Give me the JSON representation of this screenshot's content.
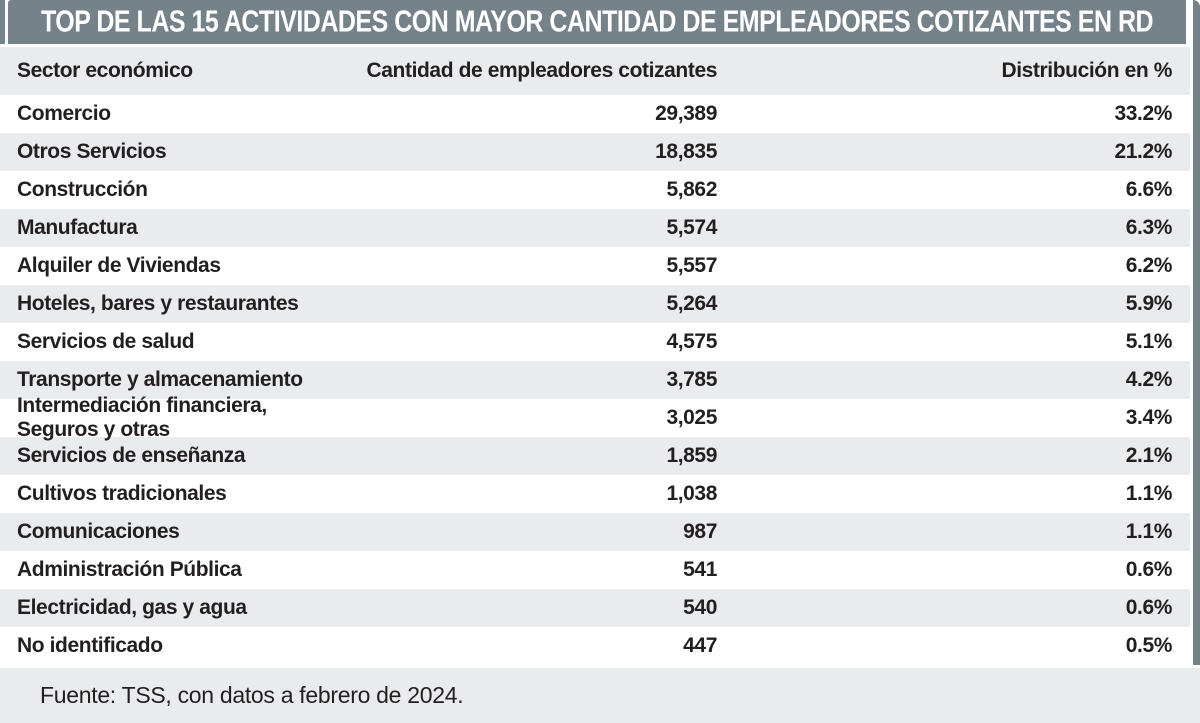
{
  "title": "TOP DE LAS 15 ACTIVIDADES CON MAYOR CANTIDAD DE EMPLEADORES COTIZANTES EN RD",
  "table": {
    "columns": [
      "Sector económico",
      "Cantidad de empleadores cotizantes",
      "Distribución en %"
    ],
    "rows": [
      {
        "sector": "Comercio",
        "cantidad": "29,389",
        "distribucion": "33.2%"
      },
      {
        "sector": "Otros Servicios",
        "cantidad": "18,835",
        "distribucion": "21.2%"
      },
      {
        "sector": "Construcción",
        "cantidad": "5,862",
        "distribucion": "6.6%"
      },
      {
        "sector": "Manufactura",
        "cantidad": "5,574",
        "distribucion": "6.3%"
      },
      {
        "sector": "Alquiler de Viviendas",
        "cantidad": "5,557",
        "distribucion": "6.2%"
      },
      {
        "sector": "Hoteles, bares y restaurantes",
        "cantidad": "5,264",
        "distribucion": "5.9%"
      },
      {
        "sector": "Servicios de salud",
        "cantidad": "4,575",
        "distribucion": "5.1%"
      },
      {
        "sector": "Transporte y almacenamiento",
        "cantidad": "3,785",
        "distribucion": "4.2%"
      },
      {
        "sector": "Intermediación financiera, Seguros y otras",
        "cantidad": "3,025",
        "distribucion": "3.4%"
      },
      {
        "sector": "Servicios de enseñanza",
        "cantidad": "1,859",
        "distribucion": "2.1%"
      },
      {
        "sector": "Cultivos tradicionales",
        "cantidad": "1,038",
        "distribucion": "1.1%"
      },
      {
        "sector": "Comunicaciones",
        "cantidad": "987",
        "distribucion": "1.1%"
      },
      {
        "sector": "Administración Pública",
        "cantidad": "541",
        "distribucion": "0.6%"
      },
      {
        "sector": "Electricidad, gas y agua",
        "cantidad": "540",
        "distribucion": "0.6%"
      },
      {
        "sector": "No identificado",
        "cantidad": "447",
        "distribucion": "0.5%"
      }
    ]
  },
  "footer": {
    "source": "Fuente: TSS, con datos a febrero de 2024."
  },
  "colors": {
    "bar_gray": "#76828A",
    "row_gray": "#E9EBEC",
    "ink": "#231F20"
  },
  "chart_data": {
    "type": "table",
    "title": "TOP DE LAS 15 ACTIVIDADES CON MAYOR CANTIDAD DE EMPLEADORES COTIZANTES EN RD",
    "columns": [
      "Sector económico",
      "Cantidad de empleadores cotizantes",
      "Distribución en %"
    ],
    "rows": [
      [
        "Comercio",
        29389,
        33.2
      ],
      [
        "Otros Servicios",
        18835,
        21.2
      ],
      [
        "Construcción",
        5862,
        6.6
      ],
      [
        "Manufactura",
        5574,
        6.3
      ],
      [
        "Alquiler de Viviendas",
        5557,
        6.2
      ],
      [
        "Hoteles, bares y restaurantes",
        5264,
        5.9
      ],
      [
        "Servicios de salud",
        4575,
        5.1
      ],
      [
        "Transporte y almacenamiento",
        3785,
        4.2
      ],
      [
        "Intermediación financiera, Seguros y otras",
        3025,
        3.4
      ],
      [
        "Servicios de enseñanza",
        1859,
        2.1
      ],
      [
        "Cultivos tradicionales",
        1038,
        1.1
      ],
      [
        "Comunicaciones",
        987,
        1.1
      ],
      [
        "Administración Pública",
        541,
        0.6
      ],
      [
        "Electricidad, gas y agua",
        540,
        0.6
      ],
      [
        "No identificado",
        447,
        0.5
      ]
    ],
    "source": "Fuente: TSS, con datos a febrero de 2024.",
    "row_striping": "alternating white / light gray, header and footer bands light gray",
    "alignment": [
      "left",
      "right",
      "right"
    ]
  }
}
